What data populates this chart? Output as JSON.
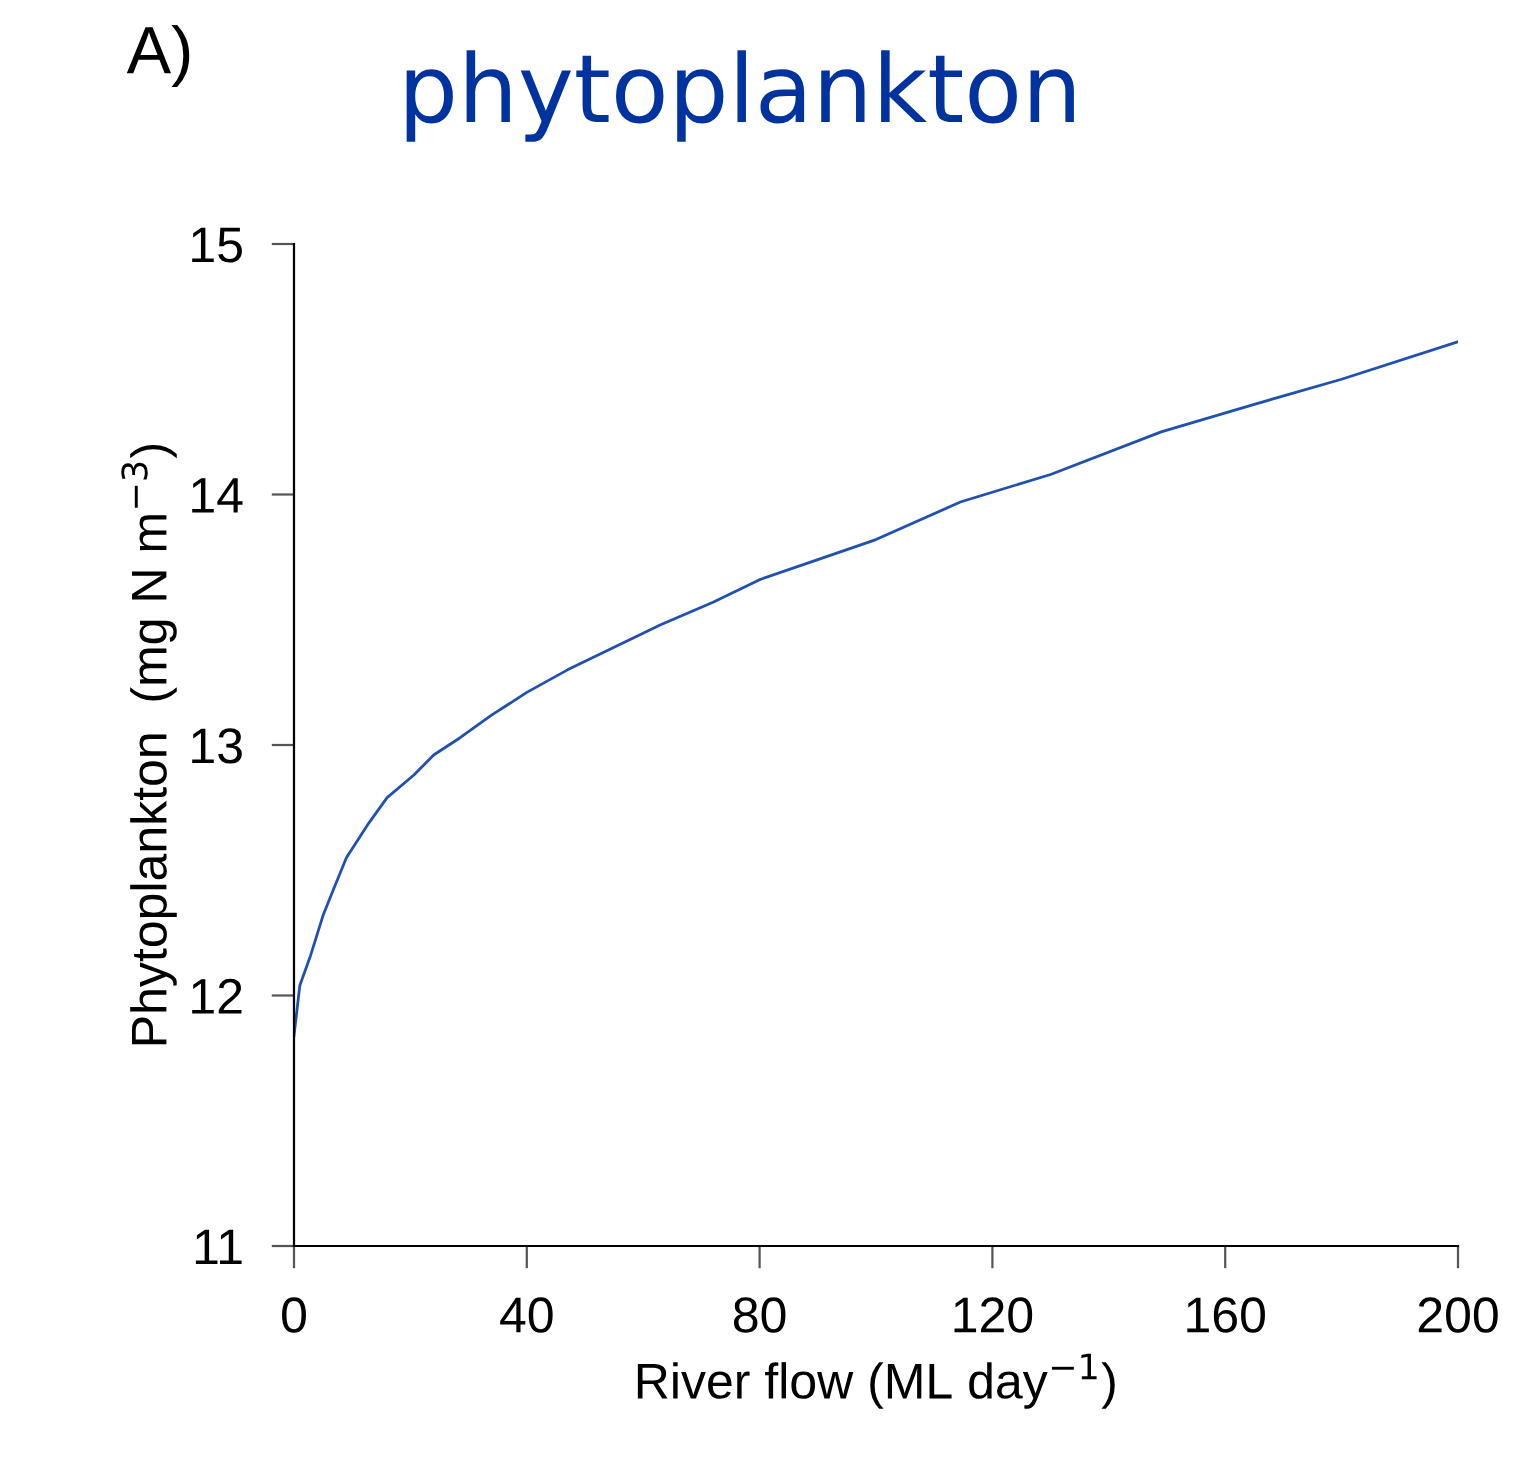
{
  "chart_data": {
    "type": "line",
    "title": "phytoplankton",
    "annotations": [
      "A)"
    ],
    "xlabel": "River flow (ML day$^{−1}$)",
    "ylabel": "Phytoplankton  (mg N m$^{−3}$)",
    "series": [
      {
        "color": "#2050b0",
        "x": [
          0,
          1,
          2.85,
          5,
          6.9,
          9,
          12.6,
          16,
          20.6,
          24,
          28.6,
          34,
          40,
          47,
          55,
          63,
          72,
          80,
          90,
          100,
          114.5,
          130,
          149,
          165,
          180,
          200
        ],
        "values": [
          11.84,
          12.04,
          12.16,
          12.32,
          12.43,
          12.55,
          12.68,
          12.79,
          12.88,
          12.96,
          13.03,
          13.12,
          13.21,
          13.3,
          13.39,
          13.48,
          13.57,
          13.66,
          13.74,
          13.82,
          13.97,
          14.08,
          14.25,
          14.36,
          14.46,
          14.61
        ]
      }
    ],
    "xlim": [
      0,
      200
    ],
    "ylim": [
      11,
      15
    ],
    "xticks": [
      0,
      40,
      80,
      120,
      160,
      200
    ],
    "yticks": [
      11,
      12,
      13,
      14,
      15
    ],
    "grid": false,
    "legend": false,
    "marker": "none",
    "line_style": "solid"
  }
}
